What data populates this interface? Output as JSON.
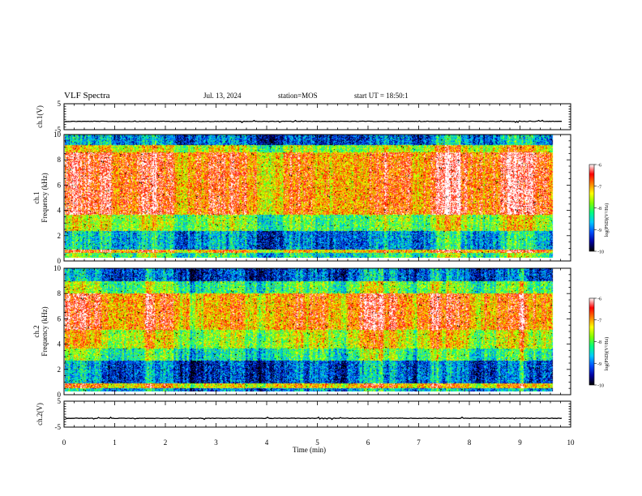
{
  "header": {
    "title": "VLF Spectra",
    "date": "Jul. 13, 2024",
    "station": "station=MOS",
    "start": "start UT = 18:50:1"
  },
  "chart_data": [
    {
      "type": "line",
      "panel": "ch1-waveform",
      "ylabel": "ch.1(V)",
      "ylim": [
        -5,
        5
      ],
      "yticks": [
        "5",
        "-5"
      ],
      "xlim": [
        0,
        10
      ],
      "series_level": -1.8,
      "color": "#000000"
    },
    {
      "type": "heatmap",
      "panel": "ch1-spectrogram",
      "ylabel": "ch.1 Frequency (kHz)",
      "ylim": [
        0,
        10
      ],
      "yticks": [
        "0",
        "2",
        "4",
        "6",
        "8",
        "10"
      ],
      "xlim": [
        0,
        9.8
      ],
      "colorbar": {
        "label": "log(PSD)(V²/Hz)",
        "ticks": [
          "-6",
          "-7",
          "-8",
          "-9",
          "-10"
        ],
        "range": [
          -10,
          -6
        ],
        "colors": [
          "#000000",
          "#0000a0",
          "#0050ff",
          "#00c8ff",
          "#00ff80",
          "#80ff00",
          "#ffff00",
          "#ff8000",
          "#ff0000",
          "#ffffff"
        ]
      }
    },
    {
      "type": "heatmap",
      "panel": "ch2-spectrogram",
      "ylabel": "ch.2 Frequency (kHz)",
      "ylim": [
        0,
        10
      ],
      "yticks": [
        "0",
        "2",
        "4",
        "6",
        "8",
        "10"
      ],
      "xlim": [
        0,
        9.8
      ],
      "colorbar": {
        "label": "log(PSD)(V²/Hz)",
        "ticks": [
          "-6",
          "-7",
          "-8",
          "-9",
          "-10"
        ],
        "range": [
          -10,
          -6
        ],
        "colors": [
          "#000000",
          "#0000a0",
          "#0050ff",
          "#00c8ff",
          "#00ff80",
          "#80ff00",
          "#ffff00",
          "#ff8000",
          "#ff0000",
          "#ffffff"
        ]
      }
    },
    {
      "type": "line",
      "panel": "ch2-waveform",
      "ylabel": "ch.2(V)",
      "ylim": [
        -5,
        5
      ],
      "yticks": [
        "5",
        "-5"
      ],
      "xlim": [
        0,
        10
      ],
      "series_level": -1.6,
      "color": "#000000"
    }
  ],
  "time_axis": {
    "label": "Time (min)",
    "ticks": [
      "0",
      "1",
      "2",
      "3",
      "4",
      "5",
      "6",
      "7",
      "8",
      "9",
      "10"
    ]
  }
}
